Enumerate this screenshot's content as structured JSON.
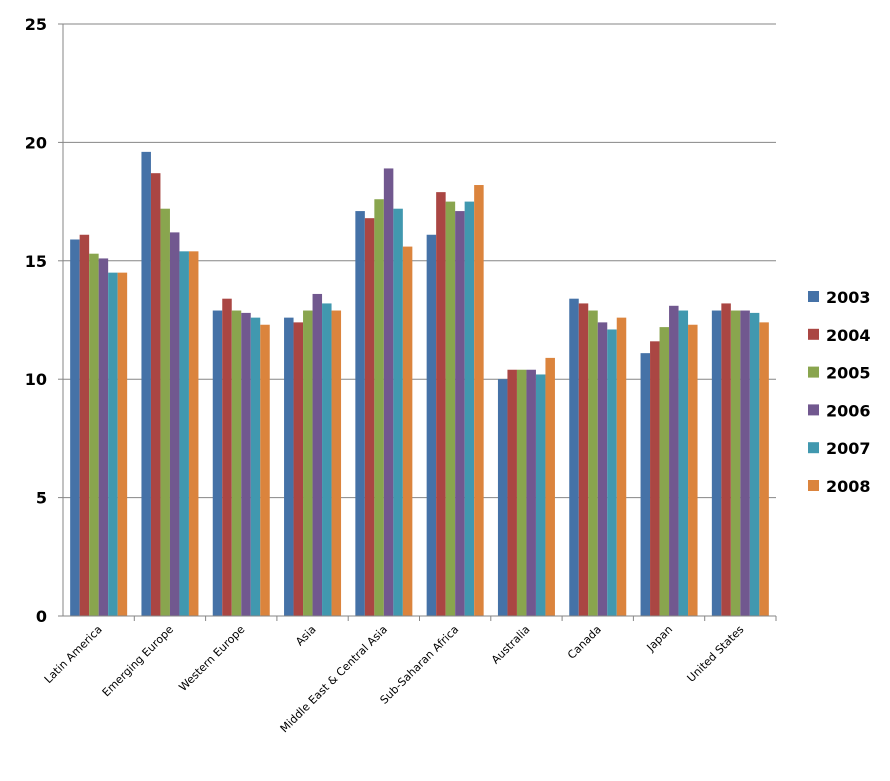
{
  "chart_data": {
    "type": "bar",
    "title": "",
    "xlabel": "",
    "ylabel": "",
    "ylim": [
      0,
      25
    ],
    "yticks": [
      "0",
      "5",
      "10",
      "15",
      "20",
      "25"
    ],
    "grid": true,
    "legend_position": "right",
    "categories": [
      "Latin America",
      "Emerging Europe",
      "Western Europe",
      "Asia",
      "Middle East & Central Asia",
      "Sub-Saharan Africa",
      "Australia",
      "Canada",
      "Japan",
      "United States"
    ],
    "series": [
      {
        "name": "2003",
        "color": "#4572A7",
        "values": [
          15.9,
          19.6,
          12.9,
          12.6,
          17.1,
          16.1,
          10.0,
          13.4,
          11.1,
          12.9
        ]
      },
      {
        "name": "2004",
        "color": "#AA4643",
        "values": [
          16.1,
          18.7,
          13.4,
          12.4,
          16.8,
          17.9,
          10.4,
          13.2,
          11.6,
          13.2
        ]
      },
      {
        "name": "2005",
        "color": "#89A54E",
        "values": [
          15.3,
          17.2,
          12.9,
          12.9,
          17.6,
          17.5,
          10.4,
          12.9,
          12.2,
          12.9
        ]
      },
      {
        "name": "2006",
        "color": "#71588F",
        "values": [
          15.1,
          16.2,
          12.8,
          13.6,
          18.9,
          17.1,
          10.4,
          12.4,
          13.1,
          12.9
        ]
      },
      {
        "name": "2007",
        "color": "#4198AF",
        "values": [
          14.5,
          15.4,
          12.6,
          13.2,
          17.2,
          17.5,
          10.2,
          12.1,
          12.9,
          12.8
        ]
      },
      {
        "name": "2008",
        "color": "#DB843D",
        "values": [
          14.5,
          15.4,
          12.3,
          12.9,
          15.6,
          18.2,
          10.9,
          12.6,
          12.3,
          12.4
        ]
      }
    ]
  }
}
